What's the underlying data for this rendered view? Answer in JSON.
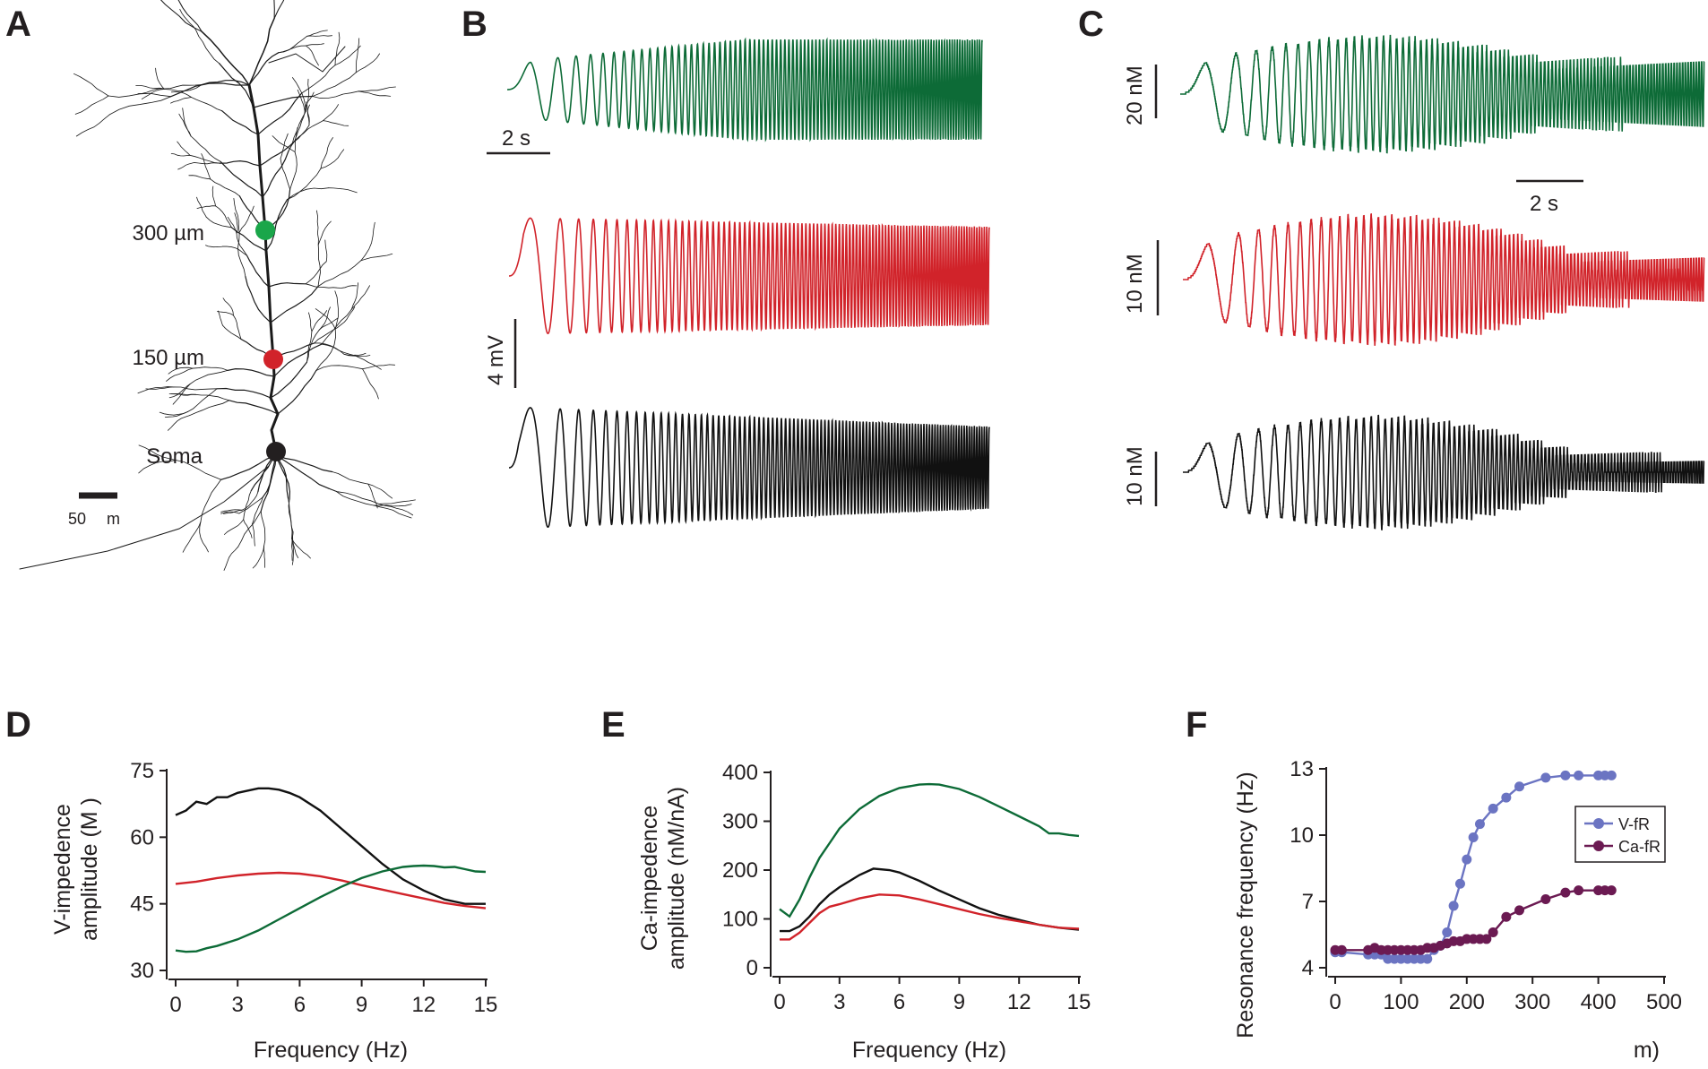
{
  "colors": {
    "green": "#0d6b37",
    "red": "#d1232a",
    "black": "#111111",
    "dotgreen": "#1aa64a",
    "vfr": "#6b74c2",
    "cafr": "#6b1a52"
  },
  "panel_labels": {
    "A": "A",
    "B": "B",
    "C": "C",
    "D": "D",
    "E": "E",
    "F": "F"
  },
  "panelA": {
    "sites": [
      {
        "label": "300 µm",
        "color": "#1aa64a"
      },
      {
        "label": "150 µm",
        "color": "#d1232a"
      },
      {
        "label": "Soma",
        "color": "#231f20"
      }
    ],
    "scalebar": {
      "num": "50",
      "unit": "m"
    }
  },
  "panelB": {
    "time_scale": "2 s",
    "voltage_scale": "4 mV"
  },
  "panelC": {
    "scale_top": "20 nM",
    "time_scale": "2 s",
    "scale_mid": "10 nM",
    "scale_bot": "10 nM"
  },
  "chart_data": [
    {
      "id": "D",
      "type": "line",
      "xlabel": "Frequency (Hz)",
      "ylabel_line1": "V-impedence",
      "ylabel_line2": "amplitude (M   )",
      "xlim": [
        0,
        15
      ],
      "ylim": [
        30,
        75
      ],
      "xticks": [
        "0",
        "3",
        "6",
        "9",
        "12",
        "15"
      ],
      "yticks": [
        "30",
        "45",
        "60",
        "75"
      ],
      "series": [
        {
          "color": "#111111",
          "x": [
            0,
            0.5,
            1,
            1.5,
            2,
            2.5,
            3,
            3.5,
            4,
            4.5,
            5,
            5.5,
            6,
            7,
            8,
            9,
            10,
            11,
            12,
            13,
            14,
            14.5,
            15
          ],
          "y": [
            65,
            66,
            68,
            67.5,
            69,
            69,
            70,
            70.5,
            71,
            71,
            70.7,
            70,
            69,
            66,
            62,
            58,
            54,
            50.5,
            48,
            46,
            45,
            45,
            45
          ]
        },
        {
          "color": "#d1232a",
          "x": [
            0,
            1,
            2,
            3,
            4,
            5,
            6,
            7,
            8,
            9,
            10,
            11,
            12,
            13,
            14,
            15
          ],
          "y": [
            49.5,
            50,
            50.8,
            51.4,
            51.8,
            52,
            51.8,
            51.2,
            50.3,
            49.2,
            48.2,
            47.2,
            46.2,
            45.2,
            44.5,
            44
          ]
        },
        {
          "color": "#0d6b37",
          "x": [
            0,
            0.5,
            1,
            1.5,
            2,
            3,
            4,
            5,
            6,
            7,
            8,
            9,
            10,
            11,
            11.5,
            12,
            12.5,
            13,
            13.5,
            14,
            14.5,
            15
          ],
          "y": [
            34.5,
            34.2,
            34.3,
            35,
            35.5,
            37,
            39,
            41.5,
            44,
            46.5,
            48.8,
            50.8,
            52.3,
            53.3,
            53.5,
            53.6,
            53.5,
            53.2,
            53.3,
            52.8,
            52.3,
            52.2
          ]
        }
      ]
    },
    {
      "id": "E",
      "type": "line",
      "xlabel": "Frequency (Hz)",
      "ylabel_line1": "Ca-impedence",
      "ylabel_line2": "amplitude (nM/nA)",
      "xlim": [
        0,
        15
      ],
      "ylim": [
        0,
        400
      ],
      "xticks": [
        "0",
        "3",
        "6",
        "9",
        "12",
        "15"
      ],
      "yticks": [
        "0",
        "100",
        "200",
        "300",
        "400"
      ],
      "series": [
        {
          "color": "#0d6b37",
          "x": [
            0,
            0.5,
            1,
            1.5,
            2,
            2.5,
            3,
            4,
            5,
            6,
            7,
            7.5,
            8,
            9,
            10,
            11,
            12,
            13,
            13.5,
            14,
            14.5,
            15
          ],
          "y": [
            120,
            105,
            140,
            185,
            225,
            255,
            285,
            325,
            352,
            368,
            375,
            376,
            375,
            366,
            350,
            330,
            310,
            290,
            275,
            275,
            272,
            270
          ]
        },
        {
          "color": "#111111",
          "x": [
            0,
            0.5,
            1,
            1.5,
            2,
            2.5,
            3,
            4,
            4.7,
            5.5,
            6,
            7,
            8,
            9,
            10,
            11,
            12,
            13,
            14,
            15
          ],
          "y": [
            75,
            75,
            85,
            105,
            130,
            150,
            165,
            190,
            203,
            200,
            195,
            178,
            158,
            140,
            122,
            108,
            98,
            88,
            82,
            78
          ]
        },
        {
          "color": "#d1232a",
          "x": [
            0,
            0.5,
            1,
            1.5,
            2,
            2.5,
            3,
            4,
            5,
            6,
            7,
            8,
            9,
            10,
            11,
            12,
            13,
            14,
            15
          ],
          "y": [
            58,
            58,
            72,
            92,
            112,
            125,
            130,
            142,
            150,
            148,
            140,
            130,
            120,
            110,
            102,
            95,
            88,
            82,
            80
          ]
        }
      ]
    },
    {
      "id": "F",
      "type": "line",
      "xlabel": "m)",
      "ylabel": "Resonance frequency (Hz)",
      "xlim": [
        0,
        500
      ],
      "ylim": [
        4,
        13
      ],
      "xticks": [
        "0",
        "100",
        "200",
        "300",
        "400",
        "500"
      ],
      "yticks": [
        "4",
        "7",
        "10",
        "13"
      ],
      "legend": {
        "position": "right",
        "entries": [
          "V-fR",
          "Ca-fR"
        ]
      },
      "series": [
        {
          "name": "V-fR",
          "color": "#6b74c2",
          "x": [
            0,
            10,
            50,
            60,
            70,
            80,
            90,
            100,
            110,
            120,
            130,
            140,
            150,
            160,
            170,
            180,
            190,
            200,
            210,
            220,
            240,
            260,
            280,
            320,
            350,
            370,
            400,
            410,
            420
          ],
          "y": [
            4.7,
            4.7,
            4.6,
            4.6,
            4.6,
            4.4,
            4.4,
            4.4,
            4.4,
            4.4,
            4.4,
            4.4,
            4.8,
            5.0,
            5.6,
            6.8,
            7.8,
            8.9,
            9.9,
            10.5,
            11.2,
            11.7,
            12.2,
            12.6,
            12.7,
            12.7,
            12.7,
            12.7,
            12.7
          ]
        },
        {
          "name": "Ca-fR",
          "color": "#6b1a52",
          "x": [
            0,
            10,
            50,
            60,
            70,
            80,
            90,
            100,
            110,
            120,
            130,
            140,
            150,
            160,
            170,
            180,
            190,
            200,
            210,
            220,
            230,
            240,
            260,
            280,
            320,
            350,
            370,
            400,
            410,
            420
          ],
          "y": [
            4.8,
            4.8,
            4.8,
            4.9,
            4.8,
            4.8,
            4.8,
            4.8,
            4.8,
            4.8,
            4.8,
            4.9,
            4.9,
            5.0,
            5.1,
            5.2,
            5.2,
            5.3,
            5.3,
            5.3,
            5.3,
            5.6,
            6.3,
            6.6,
            7.1,
            7.4,
            7.5,
            7.5,
            7.5,
            7.5
          ]
        }
      ]
    }
  ]
}
